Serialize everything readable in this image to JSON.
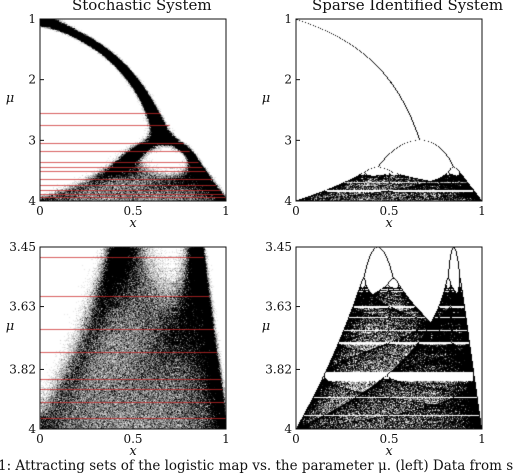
{
  "figure": {
    "col_titles": [
      "Stochastic System",
      "Sparse Identified System"
    ],
    "caption": "1: Attracting sets of the logistic map vs. the parameter μ. (left) Data from s"
  },
  "chart_data": [
    {
      "type": "scatter",
      "title": "Stochastic System",
      "xlabel": "x",
      "ylabel": "μ",
      "xlim": [
        0,
        1
      ],
      "ylim": [
        1,
        4
      ],
      "y_inverted": true,
      "x_ticks": [
        "0",
        "0.5",
        "1"
      ],
      "y_ticks": [
        "1",
        "2",
        "3",
        "4"
      ],
      "highlight_color": "#cc2a2a",
      "highlight_mu": [
        2.55,
        2.75,
        3.05,
        3.18,
        3.37,
        3.45,
        3.52,
        3.66,
        3.75,
        3.83,
        3.9,
        3.95
      ]
    },
    {
      "type": "scatter",
      "title": "Sparse Identified System",
      "xlabel": "x",
      "ylabel": "μ",
      "xlim": [
        0,
        1
      ],
      "ylim": [
        1,
        4
      ],
      "y_inverted": true,
      "x_ticks": [
        "0",
        "0.5",
        "1"
      ],
      "y_ticks": [
        "1",
        "2",
        "3",
        "4"
      ]
    },
    {
      "type": "scatter",
      "xlabel": "x",
      "ylabel": "μ",
      "xlim": [
        0,
        1
      ],
      "ylim": [
        3.45,
        4
      ],
      "y_inverted": true,
      "x_ticks": [
        "0",
        "0.5",
        "1"
      ],
      "y_ticks": [
        "3.45",
        "3.63",
        "3.82",
        "4"
      ],
      "highlight_color": "#cc2a2a",
      "highlight_mu": [
        3.48,
        3.6,
        3.7,
        3.77,
        3.85,
        3.88,
        3.92,
        3.97
      ]
    },
    {
      "type": "scatter",
      "xlabel": "x",
      "ylabel": "μ",
      "xlim": [
        0,
        1
      ],
      "ylim": [
        3.45,
        4
      ],
      "y_inverted": true,
      "x_ticks": [
        "0",
        "0.5",
        "1"
      ],
      "y_ticks": [
        "3.45",
        "3.63",
        "3.82",
        "4"
      ]
    }
  ]
}
